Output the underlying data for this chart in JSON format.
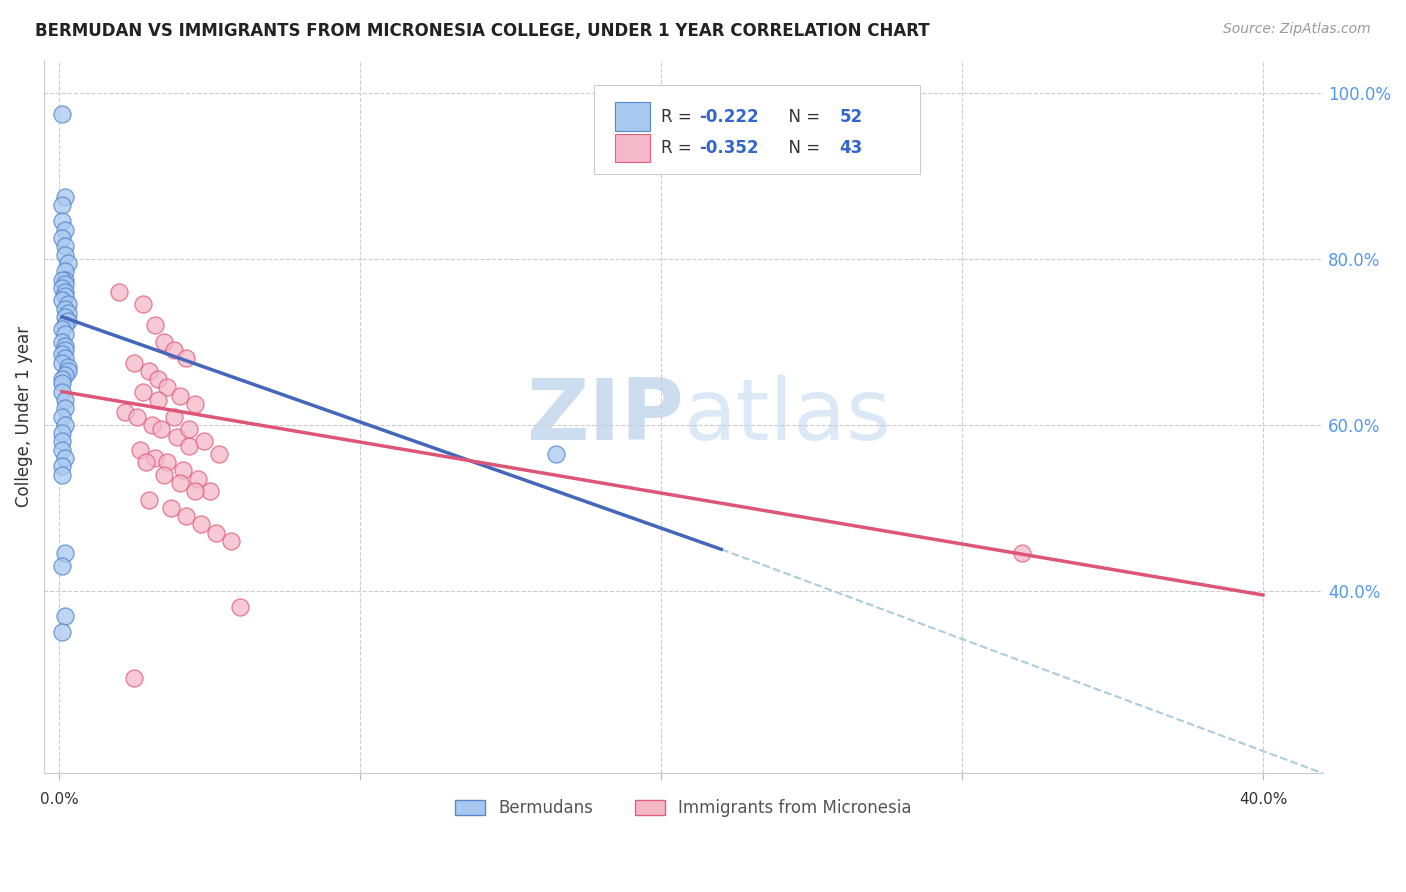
{
  "title": "BERMUDAN VS IMMIGRANTS FROM MICRONESIA COLLEGE, UNDER 1 YEAR CORRELATION CHART",
  "source": "Source: ZipAtlas.com",
  "ylabel": "College, Under 1 year",
  "legend_blue_r": "R = ",
  "legend_blue_r_val": "-0.222",
  "legend_blue_n": "N = ",
  "legend_blue_n_val": "52",
  "legend_pink_r": "R = ",
  "legend_pink_r_val": "-0.352",
  "legend_pink_n": "N = ",
  "legend_pink_n_val": "43",
  "legend_label_blue": "Bermudans",
  "legend_label_pink": "Immigrants from Micronesia",
  "blue_fill": "#A8C8F0",
  "pink_fill": "#F5B8C8",
  "blue_edge": "#5588CC",
  "pink_edge": "#E06080",
  "blue_line_color": "#4466BB",
  "pink_line_color": "#DD5577",
  "dash_line_color": "#AACCDD",
  "watermark_color": "#C8DCF0",
  "blue_scatter_x": [
    0.001,
    0.002,
    0.001,
    0.001,
    0.002,
    0.001,
    0.002,
    0.002,
    0.003,
    0.002,
    0.002,
    0.001,
    0.002,
    0.001,
    0.002,
    0.002,
    0.001,
    0.003,
    0.002,
    0.003,
    0.002,
    0.003,
    0.002,
    0.001,
    0.002,
    0.001,
    0.002,
    0.002,
    0.001,
    0.002,
    0.001,
    0.003,
    0.003,
    0.002,
    0.001,
    0.001,
    0.001,
    0.002,
    0.002,
    0.001,
    0.002,
    0.001,
    0.001,
    0.001,
    0.002,
    0.001,
    0.001,
    0.165,
    0.002,
    0.001,
    0.002,
    0.001
  ],
  "blue_scatter_y": [
    0.975,
    0.875,
    0.865,
    0.845,
    0.835,
    0.825,
    0.815,
    0.805,
    0.795,
    0.785,
    0.775,
    0.775,
    0.77,
    0.765,
    0.76,
    0.755,
    0.75,
    0.745,
    0.74,
    0.735,
    0.73,
    0.725,
    0.72,
    0.715,
    0.71,
    0.7,
    0.695,
    0.69,
    0.685,
    0.68,
    0.675,
    0.67,
    0.665,
    0.66,
    0.655,
    0.65,
    0.64,
    0.63,
    0.62,
    0.61,
    0.6,
    0.59,
    0.58,
    0.57,
    0.56,
    0.55,
    0.54,
    0.565,
    0.445,
    0.43,
    0.37,
    0.35
  ],
  "pink_scatter_x": [
    0.02,
    0.028,
    0.032,
    0.035,
    0.038,
    0.042,
    0.025,
    0.03,
    0.033,
    0.036,
    0.04,
    0.045,
    0.022,
    0.026,
    0.031,
    0.034,
    0.039,
    0.043,
    0.027,
    0.032,
    0.036,
    0.041,
    0.046,
    0.05,
    0.028,
    0.033,
    0.038,
    0.043,
    0.048,
    0.053,
    0.029,
    0.035,
    0.04,
    0.045,
    0.03,
    0.037,
    0.042,
    0.047,
    0.052,
    0.057,
    0.06,
    0.32,
    0.025
  ],
  "pink_scatter_y": [
    0.76,
    0.745,
    0.72,
    0.7,
    0.69,
    0.68,
    0.675,
    0.665,
    0.655,
    0.645,
    0.635,
    0.625,
    0.615,
    0.61,
    0.6,
    0.595,
    0.585,
    0.575,
    0.57,
    0.56,
    0.555,
    0.545,
    0.535,
    0.52,
    0.64,
    0.63,
    0.61,
    0.595,
    0.58,
    0.565,
    0.555,
    0.54,
    0.53,
    0.52,
    0.51,
    0.5,
    0.49,
    0.48,
    0.47,
    0.46,
    0.38,
    0.445,
    0.295
  ],
  "blue_line_x": [
    0.001,
    0.22
  ],
  "blue_line_y": [
    0.73,
    0.45
  ],
  "pink_line_x": [
    0.001,
    0.4
  ],
  "pink_line_y": [
    0.64,
    0.395
  ],
  "dash_line_x": [
    0.22,
    0.42
  ],
  "dash_line_y": [
    0.45,
    0.18
  ],
  "xlim": [
    -0.005,
    0.42
  ],
  "ylim": [
    0.18,
    1.04
  ],
  "xticks": [
    0.0,
    0.1,
    0.2,
    0.3,
    0.4
  ],
  "yticks_right": [
    1.0,
    0.8,
    0.6,
    0.4
  ],
  "ytick_right_labels": [
    "100.0%",
    "80.0%",
    "60.0%",
    "40.0%"
  ]
}
